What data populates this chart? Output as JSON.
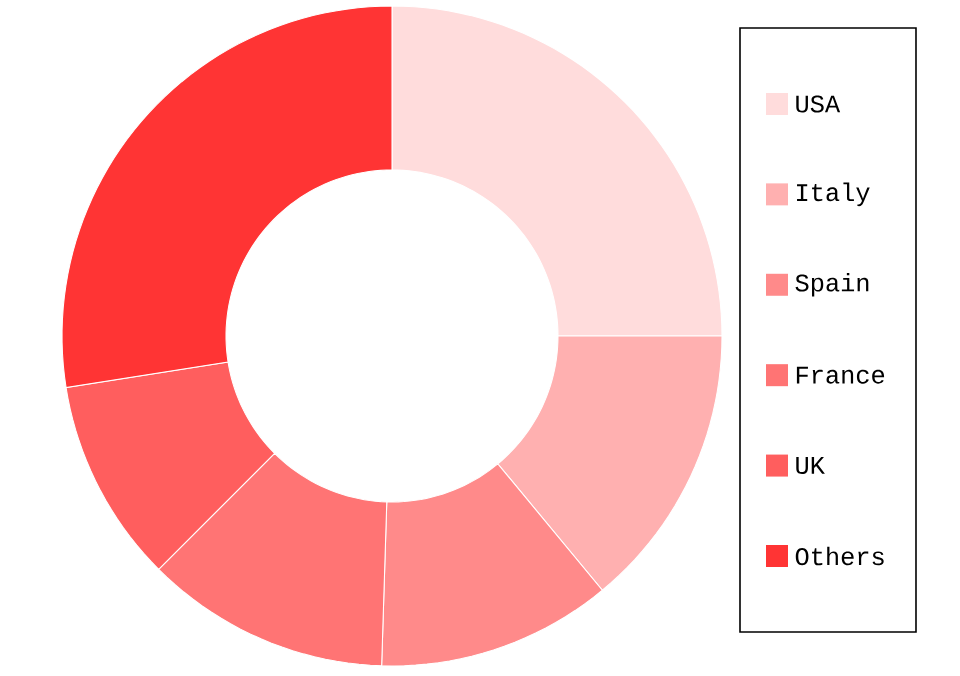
{
  "chart_data": {
    "type": "donut",
    "categories": [
      "USA",
      "Italy",
      "Spain",
      "France",
      "UK",
      "Others"
    ],
    "values": [
      25,
      14,
      11.5,
      12,
      10,
      27.5
    ],
    "colors": [
      "#ffdcdc",
      "#ffb0b0",
      "#ff8a8a",
      "#ff7474",
      "#ff5e5e",
      "#ff3434"
    ],
    "legend": "right"
  }
}
